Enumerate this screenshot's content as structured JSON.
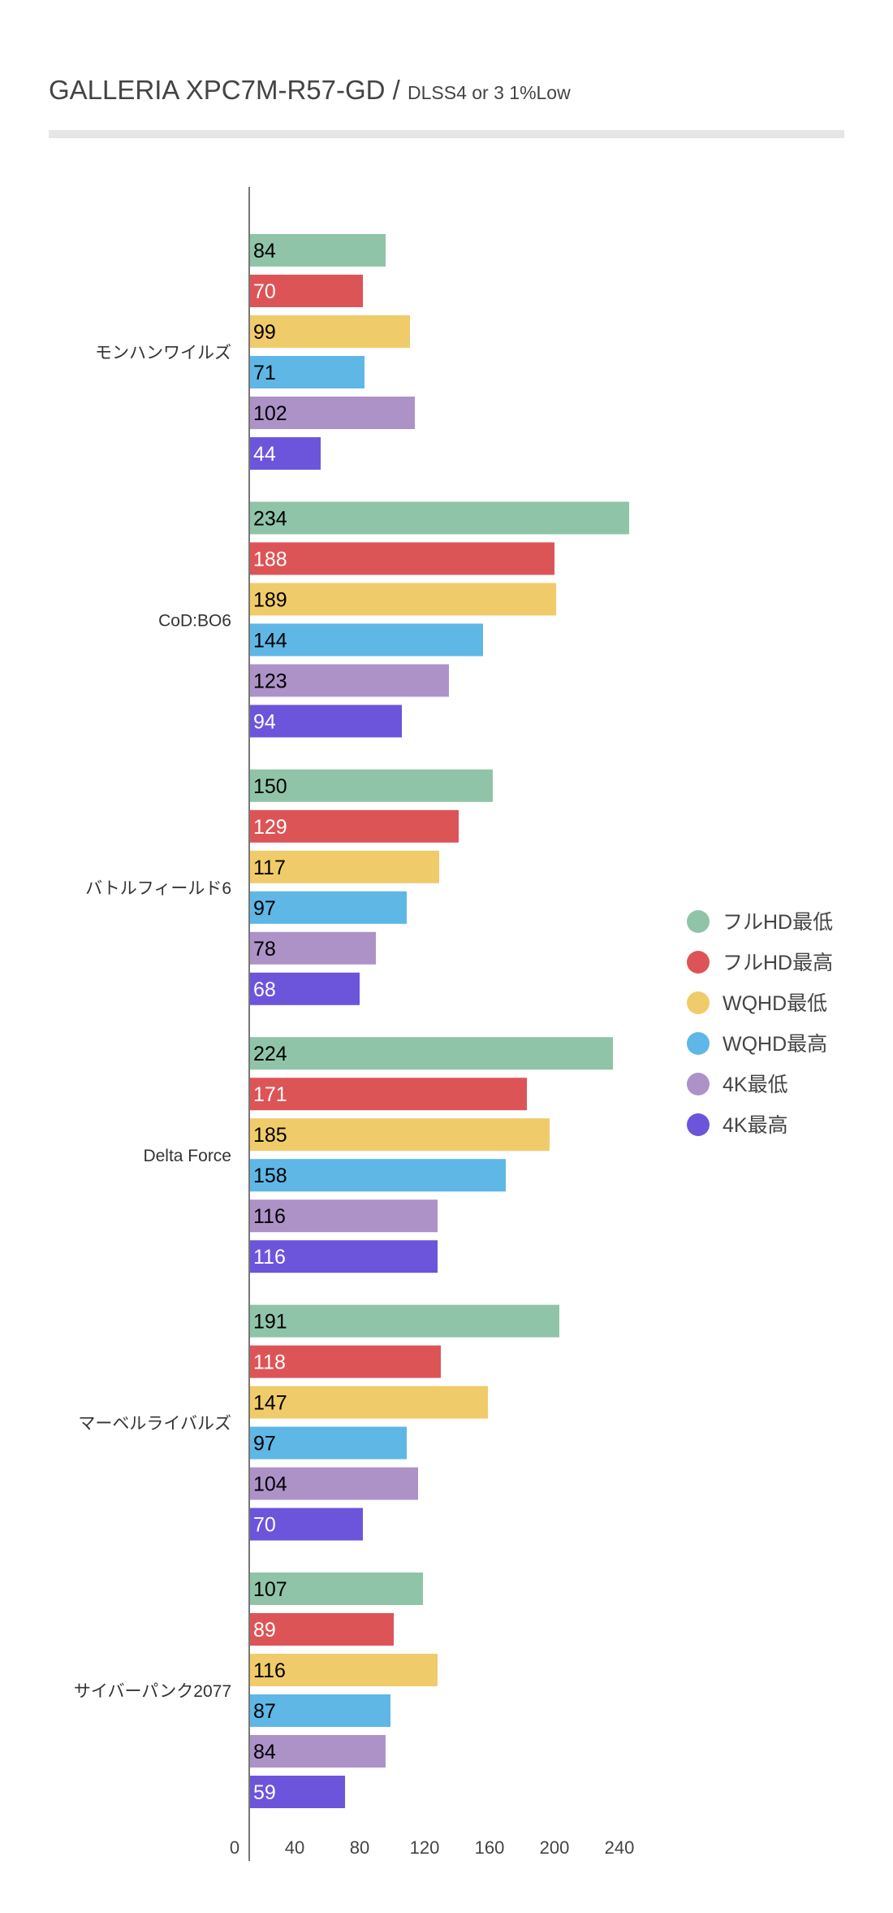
{
  "chart_data": {
    "type": "bar",
    "orientation": "horizontal",
    "title": "GALLERIA XPC7M-R57-GD",
    "subtitle": "DLSS4 or 3 1%Low",
    "title_separator": "/",
    "categories": [
      "モンハンワイルズ",
      "CoD:BO6",
      "バトルフィールド6",
      "Delta Force",
      "マーベルライバルズ",
      "サイバーパンク2077"
    ],
    "series": [
      {
        "name": "フルHD最低",
        "color": "#8fc4a8",
        "label_color": "#000000",
        "values": [
          84,
          234,
          150,
          224,
          191,
          107
        ]
      },
      {
        "name": "フルHD最高",
        "color": "#dd5457",
        "label_color": "#ffffff",
        "values": [
          70,
          188,
          129,
          171,
          118,
          89
        ]
      },
      {
        "name": "WQHD最低",
        "color": "#f0cb6a",
        "label_color": "#000000",
        "values": [
          99,
          189,
          117,
          185,
          147,
          116
        ]
      },
      {
        "name": "WQHD最高",
        "color": "#5fb7e5",
        "label_color": "#000000",
        "values": [
          71,
          144,
          97,
          158,
          97,
          87
        ]
      },
      {
        "name": "4K最低",
        "color": "#ad92c8",
        "label_color": "#000000",
        "values": [
          102,
          123,
          78,
          116,
          104,
          84
        ]
      },
      {
        "name": "4K最高",
        "color": "#6c55db",
        "label_color": "#ffffff",
        "values": [
          44,
          94,
          68,
          116,
          70,
          59
        ]
      }
    ],
    "xticks": [
      0,
      40,
      80,
      120,
      160,
      200,
      240
    ],
    "xlim": [
      0,
      240
    ],
    "xlabel": "",
    "ylabel": "",
    "grid": false,
    "legend_position": "right"
  }
}
